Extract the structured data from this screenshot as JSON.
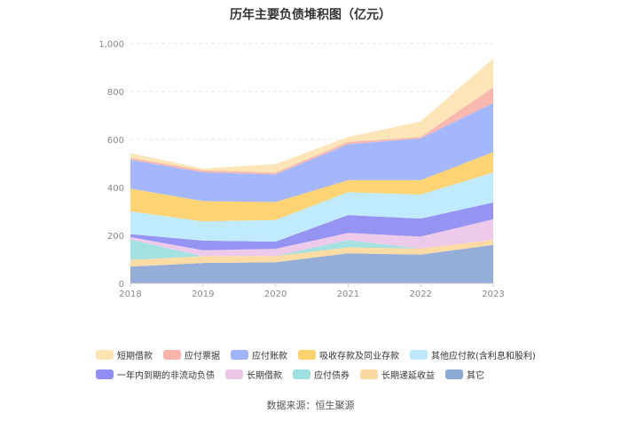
{
  "chart_data": {
    "type": "area",
    "stacked": true,
    "title": "历年主要负债堆积图（亿元）",
    "x": [
      "2018",
      "2019",
      "2020",
      "2021",
      "2022",
      "2023"
    ],
    "ylim": [
      0,
      1000
    ],
    "yticks": [
      "0",
      "200",
      "400",
      "600",
      "800",
      "1,000"
    ],
    "grid": true,
    "legend_position": "bottom",
    "series": [
      {
        "name": "其它",
        "color": "#8eaad6",
        "values": [
          70,
          85,
          88,
          125,
          120,
          160
        ]
      },
      {
        "name": "长期递延收益",
        "color": "#fcd9a0",
        "values": [
          28,
          28,
          26,
          25,
          25,
          22
        ]
      },
      {
        "name": "应付债券",
        "color": "#9ee0df",
        "values": [
          85,
          0,
          0,
          30,
          0,
          0
        ]
      },
      {
        "name": "长期借款",
        "color": "#ecc7e8",
        "values": [
          10,
          25,
          30,
          30,
          50,
          85
        ]
      },
      {
        "name": "一年内到期的非流动负债",
        "color": "#8f8ef2",
        "values": [
          12,
          40,
          30,
          75,
          75,
          70
        ]
      },
      {
        "name": "其他应付款(含利息和股利)",
        "color": "#bde9ff",
        "values": [
          95,
          80,
          90,
          95,
          100,
          125
        ]
      },
      {
        "name": "吸收存款及同业存款",
        "color": "#fdd16b",
        "values": [
          95,
          85,
          75,
          50,
          60,
          85
        ]
      },
      {
        "name": "应付账款",
        "color": "#9fb3fb",
        "values": [
          120,
          120,
          115,
          150,
          175,
          205
        ]
      },
      {
        "name": "应付票据",
        "color": "#f8b4ab",
        "values": [
          8,
          8,
          8,
          10,
          5,
          65
        ]
      },
      {
        "name": "短期借款",
        "color": "#fde4b3",
        "values": [
          20,
          8,
          35,
          20,
          65,
          120
        ]
      }
    ],
    "legend_order": [
      "短期借款",
      "应付票据",
      "应付账款",
      "吸收存款及同业存款",
      "其他应付款(含利息和股利)",
      "一年内到期的非流动负债",
      "长期借款",
      "应付债券",
      "长期递延收益",
      "其它"
    ]
  },
  "source": "数据来源：恒生聚源"
}
